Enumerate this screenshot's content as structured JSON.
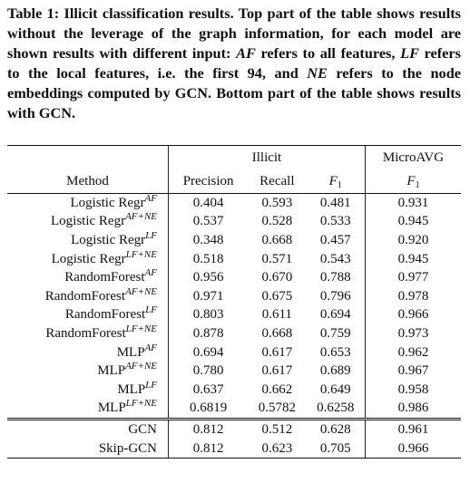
{
  "caption": {
    "label": "Table 1:",
    "parts": [
      "Illicit classification results. Top part of the table shows results without the leverage of the graph information, for each model are shown results with different input: ",
      "AF",
      " refers to all features, ",
      "LF",
      " refers to the local features, i.e. the first 94, and ",
      "NE",
      " refers to the node embeddings computed by GCN. Bottom part of the table shows results with GCN."
    ]
  },
  "table": {
    "header": {
      "method": "Method",
      "illicit": "Illicit",
      "precision": "Precision",
      "recall": "Recall",
      "f1": {
        "symbol": "F",
        "subscript": "1"
      },
      "micro": "MicroAVG",
      "micro_f1": {
        "symbol": "F",
        "subscript": "1"
      }
    },
    "sections": [
      [
        [
          "Logistic Regr",
          "AF",
          "0.404",
          "0.593",
          "0.481",
          "0.931"
        ],
        [
          "Logistic Regr",
          "AF+NE",
          "0.537",
          "0.528",
          "0.533",
          "0.945"
        ],
        [
          "Logistic Regr",
          "LF",
          "0.348",
          "0.668",
          "0.457",
          "0.920"
        ],
        [
          "Logistic Regr",
          "LF+NE",
          "0.518",
          "0.571",
          "0.543",
          "0.945"
        ],
        [
          "RandomForest",
          "AF",
          "0.956",
          "0.670",
          "0.788",
          "0.977"
        ],
        [
          "RandomForest",
          "AF+NE",
          "0.971",
          "0.675",
          "0.796",
          "0.978"
        ],
        [
          "RandomForest",
          "LF",
          "0.803",
          "0.611",
          "0.694",
          "0.966"
        ],
        [
          "RandomForest",
          "LF+NE",
          "0.878",
          "0.668",
          "0.759",
          "0.973"
        ],
        [
          "MLP",
          "AF",
          "0.694",
          "0.617",
          "0.653",
          "0.962"
        ],
        [
          "MLP",
          "AF+NE",
          "0.780",
          "0.617",
          "0.689",
          "0.967"
        ],
        [
          "MLP",
          "LF",
          "0.637",
          "0.662",
          "0.649",
          "0.958"
        ],
        [
          "MLP",
          "LF+NE",
          "0.6819",
          "0.5782",
          "0.6258",
          "0.986"
        ]
      ],
      [
        [
          "GCN",
          null,
          "0.812",
          "0.512",
          "0.628",
          "0.961"
        ],
        [
          "Skip-GCN",
          null,
          "0.812",
          "0.623",
          "0.705",
          "0.966"
        ]
      ]
    ]
  }
}
